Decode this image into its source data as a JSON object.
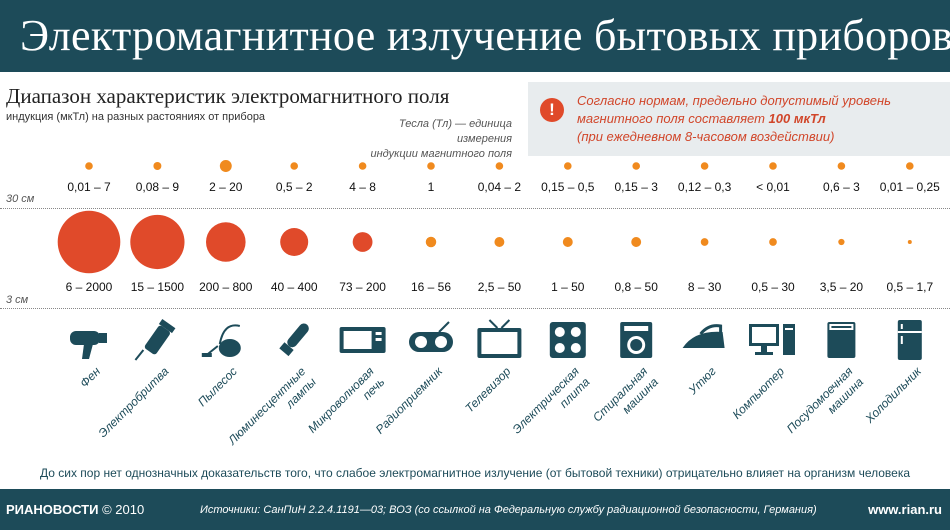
{
  "title": "Электромагнитное излучение бытовых приборов",
  "subtitle": "Диапазон характеристик электромагнитного поля",
  "subline": "индукция (мкТл) на разных растояниях от прибора",
  "tesla_note_1": "Тесла (Тл) — единица измерения",
  "tesla_note_2": "индукции магнитного поля",
  "warning": {
    "line1": "Согласно нормам, предельно допустимый уровень",
    "line2_prefix": "магнитного поля составляет ",
    "line2_bold": "100 мкТл",
    "line3": "(при ежедневном 8-часовом воздействии)",
    "icon": "exclamation-icon"
  },
  "distance_labels": {
    "far": "30 см",
    "near": "3 см"
  },
  "footer_note": "До сих пор нет однозначных доказательств того, что слабое электромагнитное излучение (от бытовой техники) отрицательно влияет на организм человека",
  "footer": {
    "brand": "РИАНОВОСТИ",
    "year": "© 2010",
    "sources": "Источники: СанПиН 2.2.4.1191—03; ВОЗ (со ссылкой на Федеральную службу радиационной безопасности, Германия)",
    "site": "www.rian.ru"
  },
  "colors": {
    "title_bg": "#1d4b59",
    "circle_far": "#f08a1e",
    "circle_near": "#e04a2a",
    "icon": "#1d4b59",
    "warning": "#d1462a"
  },
  "chart_data": {
    "type": "bubble",
    "unit": "мкТл",
    "categories": [
      "Фен",
      "Электробритва",
      "Пылесос",
      "Люминесцентные лампы",
      "Микроволновая печь",
      "Радиоприемник",
      "Телевизор",
      "Электрическая плита",
      "Стиральная машина",
      "Утюг",
      "Компьютер",
      "Посудомоечная машина",
      "Холодильник"
    ],
    "category_lines": [
      [
        "Фен"
      ],
      [
        "Электробритва"
      ],
      [
        "Пылесос"
      ],
      [
        "Люминесцентные",
        "лампы"
      ],
      [
        "Микроволновая",
        "печь"
      ],
      [
        "Радиоприемник"
      ],
      [
        "Телевизор"
      ],
      [
        "Электрическая",
        "плита"
      ],
      [
        "Стиральная",
        "машина"
      ],
      [
        "Утюг"
      ],
      [
        "Компьютер"
      ],
      [
        "Посудомоечная",
        "машина"
      ],
      [
        "Холодильник"
      ]
    ],
    "icons": [
      "hair-dryer-icon",
      "electric-shaver-icon",
      "vacuum-cleaner-icon",
      "fluorescent-lamp-icon",
      "microwave-icon",
      "radio-icon",
      "tv-icon",
      "electric-stove-icon",
      "washing-machine-icon",
      "iron-icon",
      "computer-icon",
      "dishwasher-icon",
      "fridge-icon"
    ],
    "series": [
      {
        "name": "30 см",
        "labels": [
          "0,01 – 7",
          "0,08 – 9",
          "2 – 20",
          "0,5 – 2",
          "4 – 8",
          "1",
          "0,04 – 2",
          "0,15 – 0,5",
          "0,15 – 3",
          "0,12 – 0,3",
          "< 0,01",
          "0,6 – 3",
          "0,01 – 0,25"
        ],
        "min": [
          0.01,
          0.08,
          2,
          0.5,
          4,
          1,
          0.04,
          0.15,
          0.15,
          0.12,
          0,
          0.6,
          0.01
        ],
        "max": [
          7,
          9,
          20,
          2,
          8,
          1,
          2,
          0.5,
          3,
          0.3,
          0.01,
          3,
          0.25
        ]
      },
      {
        "name": "3 см",
        "labels": [
          "6 – 2000",
          "15 – 1500",
          "200 – 800",
          "40 – 400",
          "73 – 200",
          "16 – 56",
          "2,5 – 50",
          "1 – 50",
          "0,8 – 50",
          "8 – 30",
          "0,5 – 30",
          "3,5 – 20",
          "0,5 – 1,7"
        ],
        "min": [
          6,
          15,
          200,
          40,
          73,
          16,
          2.5,
          1,
          0.8,
          8,
          0.5,
          3.5,
          0.5
        ],
        "max": [
          2000,
          1500,
          800,
          400,
          200,
          56,
          50,
          50,
          50,
          30,
          30,
          20,
          1.7
        ]
      }
    ]
  }
}
